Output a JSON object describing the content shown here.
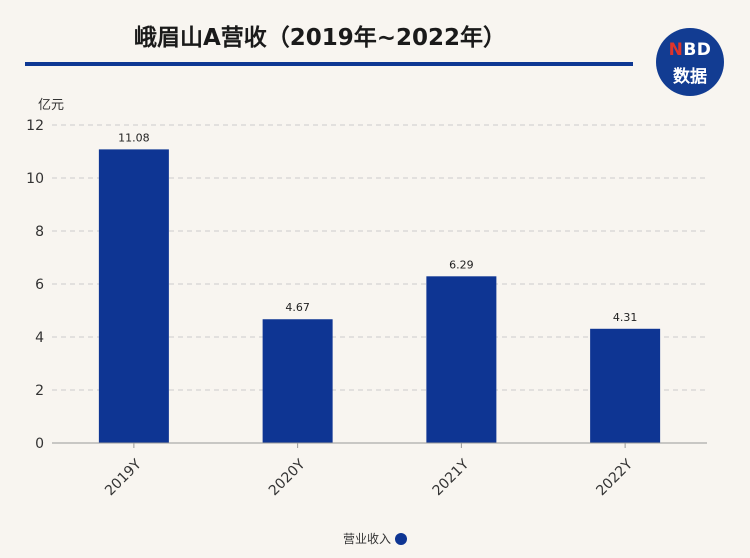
{
  "title": "峨眉山A营收（2019年~2022年）",
  "logo": {
    "line1_n": "N",
    "line1_rest": "BD",
    "line2": "数据"
  },
  "chart_data": {
    "type": "bar",
    "unit_label": "亿元",
    "categories": [
      "2019Y",
      "2020Y",
      "2021Y",
      "2022Y"
    ],
    "series": [
      {
        "name": "营业收入",
        "values": [
          11.08,
          4.67,
          6.29,
          4.31
        ],
        "color": "#0e3593"
      }
    ],
    "ylim": [
      0,
      12
    ],
    "yticks": [
      0,
      2,
      4,
      6,
      8,
      10,
      12
    ],
    "grid": true,
    "legend_position": "bottom"
  },
  "legend": {
    "label": "营业收入"
  }
}
